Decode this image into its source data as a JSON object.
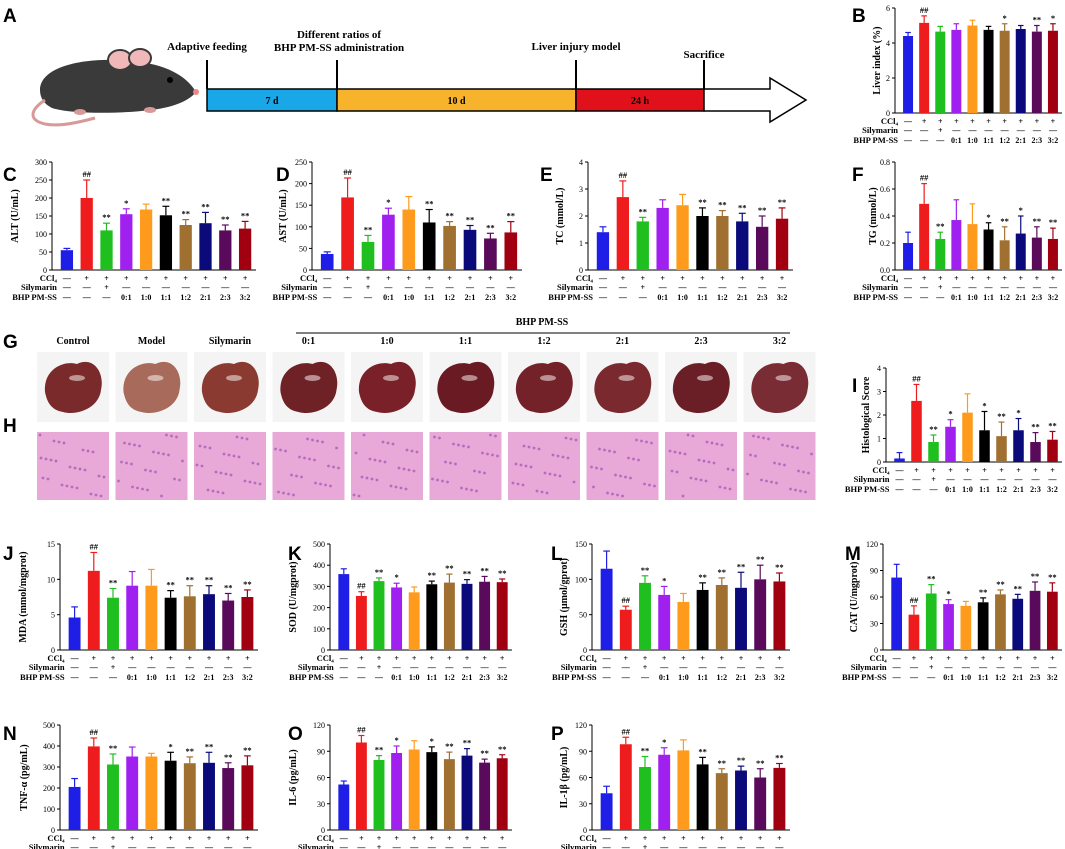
{
  "groups": [
    "Control",
    "Model",
    "Silymarin",
    "0:1",
    "1:0",
    "1:1",
    "1:2",
    "2:1",
    "2:3",
    "3:2"
  ],
  "colors": [
    "#1e1ee6",
    "#ee1c1c",
    "#1fbf1f",
    "#a020f0",
    "#ff9b1c",
    "#000000",
    "#a07030",
    "#0a0a7a",
    "#5a0a5a",
    "#a00010"
  ],
  "condition_rows": {
    "labels": [
      "CCl₄",
      "Silymarin",
      "BHP PM-SS"
    ],
    "ccl4": [
      "—",
      "+",
      "+",
      "+",
      "+",
      "+",
      "+",
      "+",
      "+",
      "+"
    ],
    "silymarin": [
      "—",
      "—",
      "+",
      "—",
      "—",
      "—",
      "—",
      "—",
      "—",
      "—"
    ],
    "bhp": [
      "—",
      "—",
      "—",
      "0:1",
      "1:0",
      "1:1",
      "1:2",
      "2:1",
      "2:3",
      "3:2"
    ]
  },
  "timeline": {
    "letter": "A",
    "stages": [
      "Adaptive feeding",
      "Different ratios of\nBHP PM-SS administration",
      "Liver injury model",
      "Sacrifice"
    ],
    "segments": [
      {
        "label": "7 d",
        "color": "#1aa7e8"
      },
      {
        "label": "10 d",
        "color": "#f7b32b"
      },
      {
        "label": "24 h",
        "color": "#e0111b"
      }
    ]
  },
  "photos": {
    "letter_g": "G",
    "letter_h": "H",
    "bhp_header": "BHP PM-SS",
    "labels": [
      "Control",
      "Model",
      "Silymarin",
      "0:1",
      "1:0",
      "1:1",
      "1:2",
      "2:1",
      "2:3",
      "3:2"
    ]
  },
  "chart_data": [
    {
      "id": "B",
      "type": "bar",
      "ylabel": "Liver index (%)",
      "ylim": [
        0,
        6
      ],
      "yticks": [
        0,
        2,
        4,
        6
      ],
      "values": [
        4.4,
        5.15,
        4.65,
        4.75,
        5.0,
        4.75,
        4.7,
        4.8,
        4.65,
        4.7
      ],
      "errors": [
        0.2,
        0.4,
        0.3,
        0.35,
        0.3,
        0.2,
        0.4,
        0.2,
        0.35,
        0.4
      ],
      "annotations": [
        "",
        "##",
        "",
        "",
        "",
        "",
        "*",
        "",
        "**",
        "*"
      ]
    },
    {
      "id": "C",
      "type": "bar",
      "ylabel": "ALT (U/mL)",
      "ylim": [
        0,
        300
      ],
      "yticks": [
        0,
        50,
        100,
        150,
        200,
        250,
        300
      ],
      "values": [
        55,
        200,
        110,
        155,
        168,
        152,
        125,
        130,
        110,
        115
      ],
      "errors": [
        5,
        50,
        20,
        15,
        15,
        25,
        15,
        30,
        15,
        20
      ],
      "annotations": [
        "",
        "##",
        "**",
        "*",
        "",
        "**",
        "**",
        "**",
        "**",
        "**"
      ]
    },
    {
      "id": "D",
      "type": "bar",
      "ylabel": "AST (U/mL)",
      "ylim": [
        0,
        250
      ],
      "yticks": [
        0,
        50,
        100,
        150,
        200,
        250
      ],
      "values": [
        37,
        168,
        65,
        128,
        140,
        110,
        102,
        93,
        73,
        87
      ],
      "errors": [
        5,
        45,
        15,
        15,
        30,
        30,
        10,
        10,
        12,
        25
      ],
      "annotations": [
        "",
        "##",
        "**",
        "*",
        "",
        "**",
        "**",
        "**",
        "**",
        "**"
      ]
    },
    {
      "id": "E",
      "type": "bar",
      "ylabel": "TC (mmol/L)",
      "ylim": [
        0,
        4
      ],
      "yticks": [
        0,
        1,
        2,
        3,
        4
      ],
      "values": [
        1.4,
        2.7,
        1.8,
        2.3,
        2.4,
        2.0,
        2.0,
        1.8,
        1.6,
        1.9
      ],
      "errors": [
        0.2,
        0.6,
        0.15,
        0.3,
        0.4,
        0.3,
        0.2,
        0.3,
        0.4,
        0.4
      ],
      "annotations": [
        "",
        "##",
        "**",
        "",
        "",
        "**",
        "**",
        "**",
        "**",
        "**"
      ]
    },
    {
      "id": "F",
      "type": "bar",
      "ylabel": "TG (mmol/L)",
      "ylim": [
        0,
        0.8
      ],
      "yticks": [
        0.0,
        0.2,
        0.4,
        0.6,
        0.8
      ],
      "values": [
        0.2,
        0.49,
        0.23,
        0.37,
        0.34,
        0.3,
        0.22,
        0.27,
        0.24,
        0.23
      ],
      "errors": [
        0.08,
        0.15,
        0.05,
        0.15,
        0.15,
        0.05,
        0.1,
        0.13,
        0.08,
        0.08
      ],
      "annotations": [
        "",
        "##",
        "**",
        "",
        "",
        "*",
        "**",
        "*",
        "**",
        "**"
      ]
    },
    {
      "id": "I",
      "type": "bar",
      "ylabel": "Histological Score",
      "ylim": [
        0,
        4
      ],
      "yticks": [
        0,
        1,
        2,
        3,
        4
      ],
      "values": [
        0.15,
        2.6,
        0.85,
        1.5,
        2.1,
        1.35,
        1.1,
        1.35,
        0.85,
        0.95
      ],
      "errors": [
        0.25,
        0.7,
        0.3,
        0.3,
        0.8,
        0.8,
        0.6,
        0.5,
        0.4,
        0.35
      ],
      "annotations": [
        "",
        "##",
        "**",
        "*",
        "",
        "*",
        "**",
        "*",
        "**",
        "**"
      ]
    },
    {
      "id": "J",
      "type": "bar",
      "ylabel": "MDA (mmol/mgprot)",
      "ylim": [
        0,
        15
      ],
      "yticks": [
        0,
        5,
        10,
        15
      ],
      "values": [
        4.6,
        11.2,
        7.4,
        9.1,
        9.1,
        7.4,
        7.6,
        7.9,
        7.0,
        7.5
      ],
      "errors": [
        1.5,
        2.6,
        1.3,
        2.0,
        2.3,
        1.0,
        1.5,
        1.2,
        1.0,
        1.0
      ],
      "annotations": [
        "",
        "##",
        "**",
        "",
        "",
        "**",
        "**",
        "**",
        "**",
        "**"
      ]
    },
    {
      "id": "K",
      "type": "bar",
      "ylabel": "SOD (U/mgprot)",
      "ylim": [
        0,
        500
      ],
      "yticks": [
        0,
        100,
        200,
        300,
        400,
        500
      ],
      "values": [
        358,
        255,
        325,
        295,
        272,
        310,
        318,
        312,
        322,
        320
      ],
      "errors": [
        25,
        20,
        15,
        20,
        25,
        15,
        40,
        20,
        25,
        15
      ],
      "annotations": [
        "",
        "##",
        "**",
        "*",
        "",
        "**",
        "**",
        "**",
        "**",
        "**"
      ]
    },
    {
      "id": "L",
      "type": "bar",
      "ylabel": "GSH (μmol/gprot)",
      "ylim": [
        0,
        150
      ],
      "yticks": [
        0,
        50,
        100,
        150
      ],
      "values": [
        115,
        57,
        95,
        78,
        68,
        85,
        92,
        88,
        100,
        97
      ],
      "errors": [
        25,
        5,
        10,
        12,
        12,
        10,
        10,
        22,
        20,
        12
      ],
      "annotations": [
        "",
        "##",
        "**",
        "*",
        "",
        "**",
        "**",
        "**",
        "**",
        "**"
      ]
    },
    {
      "id": "M",
      "type": "bar",
      "ylabel": "CAT (U/mgprot)",
      "ylim": [
        0,
        120
      ],
      "yticks": [
        0,
        30,
        60,
        90,
        120
      ],
      "values": [
        82,
        40,
        64,
        52,
        50,
        54,
        63,
        58,
        67,
        66
      ],
      "errors": [
        15,
        10,
        10,
        5,
        5,
        5,
        5,
        5,
        10,
        10
      ],
      "annotations": [
        "",
        "##",
        "**",
        "*",
        "",
        "**",
        "**",
        "**",
        "**",
        "**"
      ]
    },
    {
      "id": "N",
      "type": "bar",
      "ylabel": "TNF-α (pg/mL)",
      "ylim": [
        0,
        500
      ],
      "yticks": [
        0,
        100,
        200,
        300,
        400,
        500
      ],
      "values": [
        205,
        398,
        312,
        350,
        350,
        330,
        318,
        320,
        295,
        308
      ],
      "errors": [
        40,
        40,
        50,
        45,
        15,
        40,
        30,
        50,
        25,
        45
      ],
      "annotations": [
        "",
        "##",
        "**",
        "",
        "",
        "*",
        "**",
        "**",
        "**",
        "**"
      ]
    },
    {
      "id": "O",
      "type": "bar",
      "ylabel": "IL-6 (pg/mL)",
      "ylim": [
        0,
        120
      ],
      "yticks": [
        0,
        30,
        60,
        90,
        120
      ],
      "values": [
        52,
        100,
        80,
        88,
        92,
        89,
        81,
        85,
        77,
        82
      ],
      "errors": [
        4,
        8,
        5,
        8,
        10,
        6,
        8,
        8,
        4,
        4
      ],
      "annotations": [
        "",
        "##",
        "**",
        "*",
        "",
        "*",
        "**",
        "**",
        "**",
        "**"
      ]
    },
    {
      "id": "P",
      "type": "bar",
      "ylabel": "IL-1β (pg/mL)",
      "ylim": [
        0,
        120
      ],
      "yticks": [
        0,
        30,
        60,
        90,
        120
      ],
      "values": [
        42,
        98,
        72,
        86,
        91,
        75,
        65,
        68,
        60,
        71
      ],
      "errors": [
        8,
        8,
        12,
        8,
        12,
        8,
        5,
        5,
        10,
        5
      ],
      "annotations": [
        "",
        "##",
        "**",
        "*",
        "",
        "**",
        "**",
        "**",
        "**",
        "**"
      ]
    }
  ]
}
